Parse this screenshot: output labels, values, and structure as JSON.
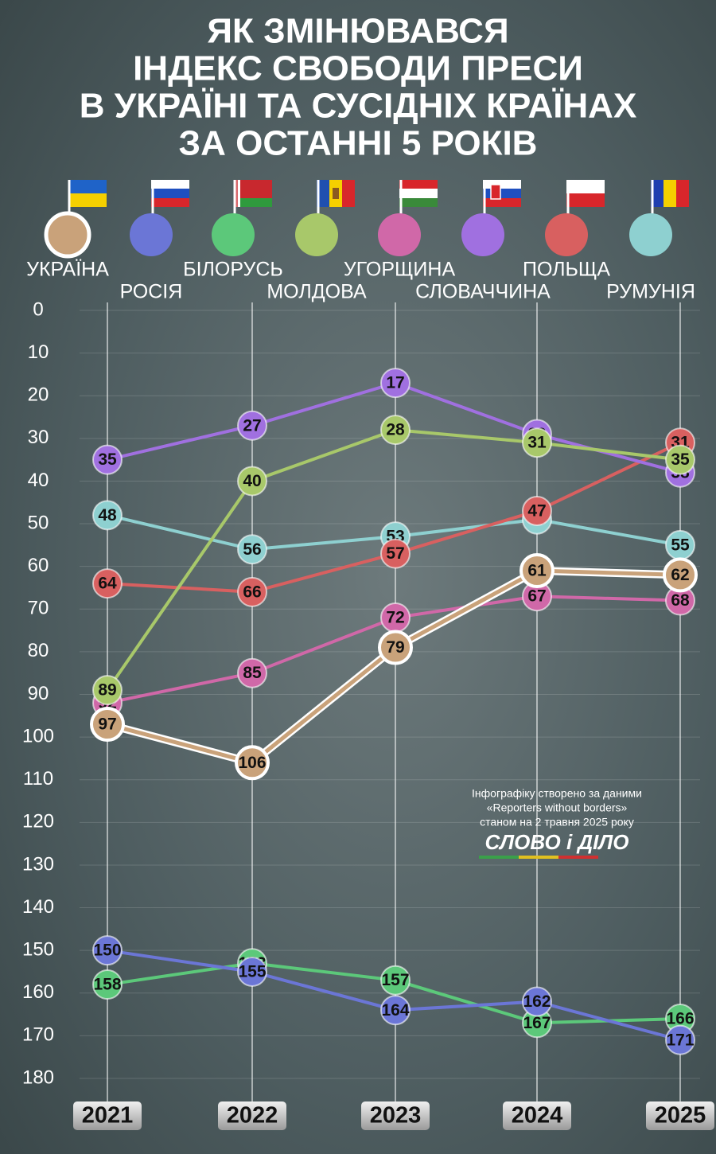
{
  "chart_data": {
    "type": "line",
    "title": [
      "ЯК ЗМІНЮВАВСЯ",
      "ІНДЕКС СВОБОДИ ПРЕСИ",
      "В УКРАЇНІ ТА СУСІДНІХ КРАЇНАХ",
      "ЗА ОСТАННІ 5 РОКІВ"
    ],
    "categories": [
      "2021",
      "2022",
      "2023",
      "2024",
      "2025"
    ],
    "y_inverted": true,
    "ylim": [
      0,
      180
    ],
    "yticks": [
      0,
      10,
      20,
      30,
      40,
      50,
      60,
      70,
      80,
      90,
      100,
      110,
      120,
      130,
      140,
      150,
      160,
      170,
      180
    ],
    "series": [
      {
        "name": "УКРАЇНА",
        "color": "#c9a27a",
        "values": [
          97,
          106,
          79,
          61,
          62
        ]
      },
      {
        "name": "РОСІЯ",
        "color": "#6b76d6",
        "values": [
          150,
          155,
          164,
          162,
          171
        ]
      },
      {
        "name": "БІЛОРУСЬ",
        "color": "#5cc87a",
        "values": [
          158,
          153,
          157,
          167,
          166
        ]
      },
      {
        "name": "МОЛДОВА",
        "color": "#a8c86a",
        "values": [
          89,
          40,
          28,
          31,
          35
        ]
      },
      {
        "name": "УГОРЩИНА",
        "color": "#d068a8",
        "values": [
          92,
          85,
          72,
          67,
          68
        ]
      },
      {
        "name": "СЛОВАЧЧИНА",
        "color": "#a070e0",
        "values": [
          35,
          27,
          17,
          29,
          38
        ]
      },
      {
        "name": "ПОЛЬЩА",
        "color": "#d86060",
        "values": [
          64,
          66,
          57,
          47,
          31
        ]
      },
      {
        "name": "РУМУНІЯ",
        "color": "#8ed0d0",
        "values": [
          48,
          56,
          53,
          49,
          55
        ]
      }
    ],
    "source": [
      "Інфографіку створено за даними",
      "«Reporters without borders»",
      "станом на 2 травня 2025 року"
    ],
    "logo": "СЛОВО і ДІЛО"
  }
}
